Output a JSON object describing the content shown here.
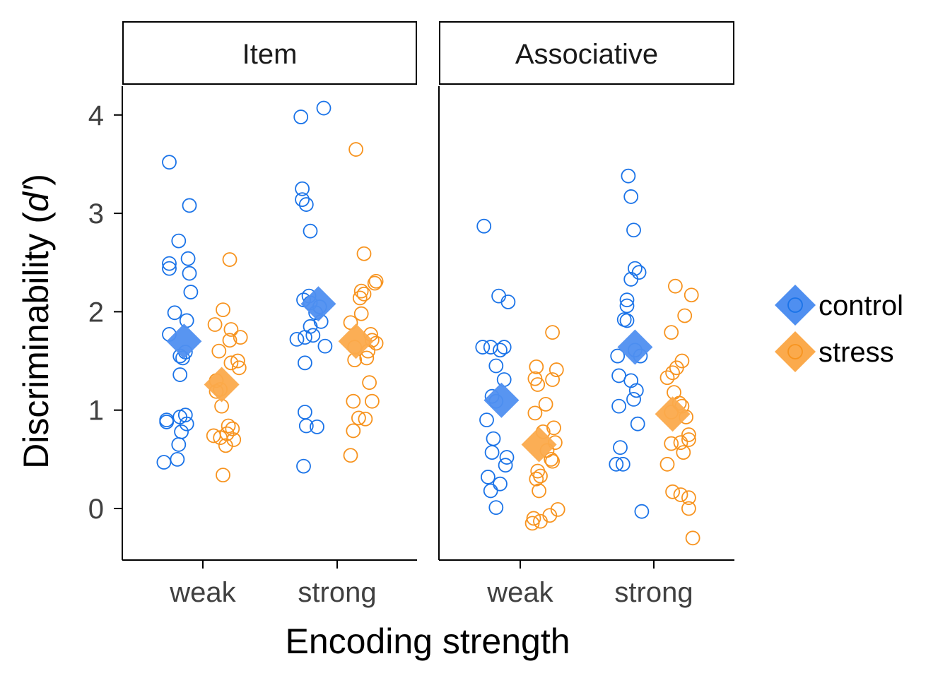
{
  "chart_data": {
    "type": "scatter",
    "xlabel": "Encoding strength",
    "ylabel_prefix": "Discriminability (",
    "ylabel_italic": "d′",
    "ylabel_suffix": ")",
    "ylim": [
      -0.5,
      4.3
    ],
    "yticks": [
      0,
      1,
      2,
      3,
      4
    ],
    "categories": [
      "weak",
      "strong"
    ],
    "grid": false,
    "legend_position": "right",
    "colors": {
      "control": "#1a73e8",
      "stress": "#f7931e",
      "control_mean": "#4f8ff0",
      "stress_mean": "#fbaa4c"
    },
    "legend": [
      {
        "name": "control",
        "color": "#4f8ff0"
      },
      {
        "name": "stress",
        "color": "#fbaa4c"
      }
    ],
    "panels": [
      {
        "title": "Item",
        "groups": [
          {
            "category": "weak",
            "condition": "control",
            "mean": 1.7,
            "values": [
              3.52,
              3.08,
              2.72,
              2.54,
              2.49,
              2.44,
              2.39,
              2.2,
              1.99,
              1.91,
              1.77,
              1.59,
              1.55,
              1.53,
              1.36,
              0.95,
              0.93,
              0.9,
              0.88,
              0.86,
              0.78,
              0.65,
              0.5,
              0.47
            ],
            "jitter": [
              -0.25,
              -0.1,
              -0.18,
              -0.11,
              -0.25,
              -0.25,
              -0.1,
              -0.09,
              -0.21,
              -0.12,
              -0.25,
              -0.13,
              -0.17,
              -0.15,
              -0.17,
              -0.13,
              -0.17,
              -0.27,
              -0.27,
              -0.12,
              -0.16,
              -0.18,
              -0.19,
              -0.29
            ]
          },
          {
            "category": "weak",
            "condition": "stress",
            "mean": 1.26,
            "values": [
              2.53,
              2.02,
              1.87,
              1.82,
              1.74,
              1.71,
              1.6,
              1.5,
              1.48,
              1.43,
              1.3,
              1.21,
              1.19,
              1.04,
              0.84,
              0.81,
              0.76,
              0.74,
              0.72,
              0.7,
              0.64,
              0.34
            ],
            "jitter": [
              0.2,
              0.15,
              0.09,
              0.21,
              0.28,
              0.2,
              0.12,
              0.26,
              0.21,
              0.27,
              0.1,
              0.13,
              0.1,
              0.14,
              0.19,
              0.22,
              0.18,
              0.08,
              0.13,
              0.23,
              0.17,
              0.15
            ]
          },
          {
            "category": "strong",
            "condition": "control",
            "mean": 2.08,
            "values": [
              4.07,
              3.98,
              3.25,
              3.14,
              3.09,
              2.82,
              2.16,
              2.12,
              2.09,
              2.05,
              1.99,
              1.9,
              1.85,
              1.76,
              1.74,
              1.72,
              1.65,
              1.48,
              0.98,
              0.84,
              0.83,
              0.43
            ],
            "jitter": [
              -0.1,
              -0.27,
              -0.26,
              -0.26,
              -0.23,
              -0.2,
              -0.21,
              -0.25,
              -0.2,
              -0.13,
              -0.16,
              -0.12,
              -0.2,
              -0.18,
              -0.24,
              -0.3,
              -0.09,
              -0.24,
              -0.24,
              -0.23,
              -0.15,
              -0.25
            ]
          },
          {
            "category": "strong",
            "condition": "stress",
            "mean": 1.7,
            "values": [
              3.65,
              2.59,
              2.31,
              2.29,
              2.21,
              2.18,
              2.14,
              1.98,
              1.89,
              1.77,
              1.71,
              1.68,
              1.64,
              1.6,
              1.53,
              1.51,
              1.28,
              1.09,
              1.09,
              0.91,
              0.92,
              0.79,
              0.54
            ],
            "jitter": [
              0.14,
              0.2,
              0.29,
              0.28,
              0.18,
              0.2,
              0.17,
              0.18,
              0.1,
              0.25,
              0.26,
              0.29,
              0.13,
              0.23,
              0.22,
              0.13,
              0.24,
              0.12,
              0.26,
              0.21,
              0.16,
              0.12,
              0.1
            ]
          }
        ]
      },
      {
        "title": "Associative",
        "groups": [
          {
            "category": "weak",
            "condition": "control",
            "mean": 1.1,
            "values": [
              2.87,
              2.16,
              2.1,
              1.64,
              1.64,
              1.64,
              1.61,
              1.45,
              1.31,
              1.14,
              1.09,
              0.9,
              0.71,
              0.57,
              0.52,
              0.44,
              0.32,
              0.25,
              0.18,
              0.01
            ],
            "jitter": [
              -0.27,
              -0.16,
              -0.09,
              -0.28,
              -0.22,
              -0.12,
              -0.15,
              -0.18,
              -0.12,
              -0.21,
              -0.18,
              -0.25,
              -0.2,
              -0.21,
              -0.1,
              -0.11,
              -0.24,
              -0.15,
              -0.22,
              -0.18
            ]
          },
          {
            "category": "weak",
            "condition": "stress",
            "mean": 0.65,
            "values": [
              1.79,
              1.44,
              1.41,
              1.32,
              1.31,
              1.26,
              1.06,
              0.97,
              0.82,
              0.78,
              0.67,
              0.59,
              0.5,
              0.48,
              0.38,
              0.33,
              0.3,
              0.18,
              -0.01,
              -0.07,
              -0.1,
              -0.13,
              -0.15
            ],
            "jitter": [
              0.24,
              0.12,
              0.27,
              0.11,
              0.24,
              0.13,
              0.19,
              0.11,
              0.25,
              0.17,
              0.26,
              0.2,
              0.23,
              0.24,
              0.13,
              0.15,
              0.12,
              0.14,
              0.28,
              0.22,
              0.1,
              0.15,
              0.09
            ]
          },
          {
            "category": "strong",
            "condition": "control",
            "mean": 1.64,
            "values": [
              3.38,
              3.17,
              2.83,
              2.44,
              2.4,
              2.33,
              2.12,
              2.06,
              1.92,
              1.91,
              1.61,
              1.55,
              1.55,
              1.35,
              1.3,
              1.2,
              1.11,
              1.04,
              0.86,
              0.62,
              0.45,
              0.45,
              -0.03
            ],
            "jitter": [
              -0.19,
              -0.17,
              -0.15,
              -0.14,
              -0.11,
              -0.17,
              -0.2,
              -0.2,
              -0.22,
              -0.2,
              -0.14,
              -0.27,
              -0.1,
              -0.26,
              -0.17,
              -0.13,
              -0.15,
              -0.26,
              -0.12,
              -0.25,
              -0.28,
              -0.23,
              -0.09
            ]
          },
          {
            "category": "strong",
            "condition": "stress",
            "mean": 0.96,
            "values": [
              2.26,
              2.17,
              1.96,
              1.79,
              1.5,
              1.43,
              1.38,
              1.33,
              1.18,
              1.07,
              1.04,
              0.98,
              0.93,
              0.75,
              0.7,
              0.66,
              0.67,
              0.57,
              0.45,
              0.17,
              0.14,
              0.11,
              0.0,
              -0.3
            ],
            "jitter": [
              0.16,
              0.28,
              0.23,
              0.13,
              0.21,
              0.17,
              0.14,
              0.1,
              0.15,
              0.19,
              0.21,
              0.13,
              0.24,
              0.26,
              0.26,
              0.13,
              0.2,
              0.22,
              0.1,
              0.14,
              0.2,
              0.26,
              0.26,
              0.29
            ]
          }
        ]
      }
    ]
  }
}
